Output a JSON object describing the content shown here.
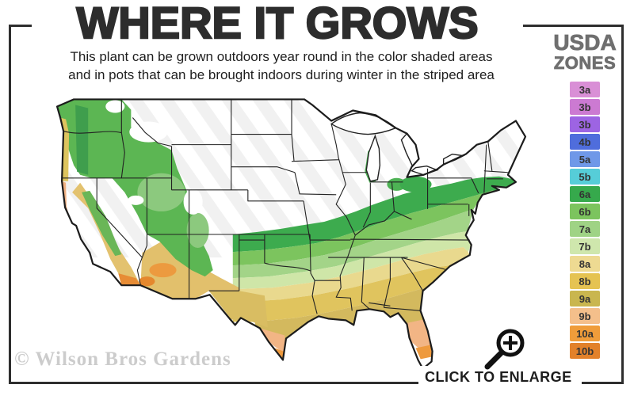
{
  "header": {
    "title": "WHERE IT GROWS",
    "subtitle_line1": "This plant can be grown outdoors year round in the color shaded areas",
    "subtitle_line2": "and in pots that can be brought indoors during winter in the striped area"
  },
  "legend": {
    "title_line1": "USDA",
    "title_line2": "ZONES",
    "zones": [
      {
        "label": "3a",
        "color": "#d98fd6"
      },
      {
        "label": "3b",
        "color": "#cc7ad2"
      },
      {
        "label": "3b",
        "color": "#9d64e3"
      },
      {
        "label": "4b",
        "color": "#4f6ddc"
      },
      {
        "label": "5a",
        "color": "#6f98e8"
      },
      {
        "label": "5b",
        "color": "#56cdd8"
      },
      {
        "label": "6a",
        "color": "#36a94c"
      },
      {
        "label": "6b",
        "color": "#7cc45e"
      },
      {
        "label": "7a",
        "color": "#9fd385"
      },
      {
        "label": "7b",
        "color": "#cfe7ad"
      },
      {
        "label": "8a",
        "color": "#eeda92"
      },
      {
        "label": "8b",
        "color": "#e5c352"
      },
      {
        "label": "9a",
        "color": "#c9b64f"
      },
      {
        "label": "9b",
        "color": "#f4bf8b"
      },
      {
        "label": "10a",
        "color": "#ef9c3a"
      },
      {
        "label": "10b",
        "color": "#e2812a"
      }
    ]
  },
  "map": {
    "base_color": "#ffffff",
    "outline_color": "#1c1c1c",
    "stripe_color": "#f0f0f0"
  },
  "watermark": {
    "text": "© Wilson Bros Gardens"
  },
  "enlarge": {
    "label": "CLICK TO ENLARGE",
    "icon": "magnifier-plus-icon"
  },
  "frame": {
    "border_color": "#2e2e2e"
  }
}
